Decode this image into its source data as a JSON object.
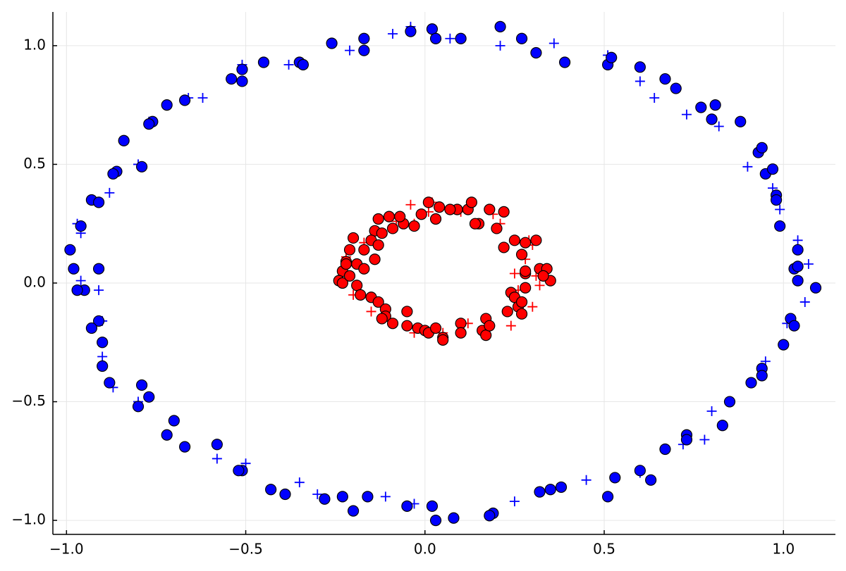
{
  "chart_data": {
    "type": "scatter",
    "xlim": [
      -1.038,
      1.145
    ],
    "ylim": [
      -1.059,
      1.142
    ],
    "xticks": [
      {
        "value": -1,
        "label": "−1.0"
      },
      {
        "value": -0.5,
        "label": "−0.5"
      },
      {
        "value": 0,
        "label": "0.0"
      },
      {
        "value": 0.5,
        "label": "0.5"
      },
      {
        "value": 1,
        "label": "1.0"
      }
    ],
    "yticks": [
      {
        "value": -1,
        "label": "−1.0"
      },
      {
        "value": -0.5,
        "label": "−0.5"
      },
      {
        "value": 0,
        "label": "0.0"
      },
      {
        "value": 0.5,
        "label": "0.5"
      },
      {
        "value": 1,
        "label": "1.0"
      }
    ],
    "grid": true,
    "series": [
      {
        "marker": "cross",
        "color": "#0000ff",
        "x": [
          -0.04,
          -0.21,
          -0.09,
          0.07,
          0.21,
          0.36,
          0.51,
          0.6,
          0.64,
          0.73,
          0.82,
          0.9,
          0.97,
          0.99,
          1.04,
          1.07,
          1.06,
          1.01,
          0.95,
          0.8,
          0.78,
          0.72,
          0.6,
          0.45,
          0.25,
          -0.03,
          -0.11,
          -0.3,
          -0.35,
          -0.5,
          -0.58,
          -0.8,
          -0.87,
          -0.9,
          -0.9,
          -0.91,
          -0.96,
          -0.96,
          -0.97,
          -0.88,
          -0.8,
          -0.77,
          -0.66,
          -0.62,
          -0.51,
          -0.38
        ],
        "values": [
          1.08,
          0.98,
          1.05,
          1.03,
          1.0,
          1.01,
          0.96,
          0.85,
          0.78,
          0.71,
          0.66,
          0.49,
          0.4,
          0.31,
          0.18,
          0.08,
          -0.08,
          -0.17,
          -0.33,
          -0.54,
          -0.66,
          -0.68,
          -0.8,
          -0.83,
          -0.92,
          -0.93,
          -0.9,
          -0.89,
          -0.84,
          -0.76,
          -0.74,
          -0.5,
          -0.44,
          -0.31,
          -0.16,
          -0.03,
          0.01,
          0.21,
          0.25,
          0.38,
          0.5,
          0.68,
          0.78,
          0.78,
          0.92,
          0.92
        ]
      },
      {
        "marker": "circle",
        "color": "#0000ff",
        "x": [
          -0.26,
          -0.17,
          -0.17,
          -0.04,
          0.02,
          0.03,
          0.1,
          0.21,
          0.27,
          0.31,
          0.39,
          0.51,
          0.52,
          0.6,
          0.67,
          0.7,
          0.77,
          0.81,
          0.8,
          0.88,
          0.93,
          0.94,
          0.95,
          0.97,
          0.98,
          0.98,
          0.99,
          1.04,
          1.03,
          1.04,
          1.04,
          1.09,
          1.02,
          1.03,
          1.0,
          0.91,
          0.94,
          0.94,
          0.85,
          0.83,
          0.73,
          0.73,
          0.67,
          0.63,
          0.6,
          0.53,
          0.51,
          0.38,
          0.35,
          0.32,
          0.19,
          0.18,
          0.08,
          0.03,
          0.02,
          -0.05,
          -0.16,
          -0.2,
          -0.23,
          -0.28,
          -0.39,
          -0.43,
          -0.51,
          -0.52,
          -0.58,
          -0.67,
          -0.7,
          -0.72,
          -0.77,
          -0.79,
          -0.8,
          -0.88,
          -0.9,
          -0.9,
          -0.91,
          -0.93,
          -0.91,
          -0.95,
          -0.97,
          -0.98,
          -0.99,
          -0.96,
          -0.93,
          -0.91,
          -0.86,
          -0.87,
          -0.84,
          -0.79,
          -0.76,
          -0.77,
          -0.72,
          -0.67,
          -0.54,
          -0.51,
          -0.51,
          -0.45,
          -0.35,
          -0.34
        ],
        "values": [
          1.01,
          1.03,
          0.98,
          1.06,
          1.07,
          1.03,
          1.03,
          1.08,
          1.03,
          0.97,
          0.93,
          0.92,
          0.95,
          0.91,
          0.86,
          0.82,
          0.74,
          0.75,
          0.69,
          0.68,
          0.55,
          0.57,
          0.46,
          0.48,
          0.37,
          0.35,
          0.24,
          0.14,
          0.06,
          0.07,
          0.01,
          -0.02,
          -0.15,
          -0.18,
          -0.26,
          -0.42,
          -0.36,
          -0.39,
          -0.5,
          -0.6,
          -0.64,
          -0.66,
          -0.7,
          -0.83,
          -0.79,
          -0.82,
          -0.9,
          -0.86,
          -0.87,
          -0.88,
          -0.97,
          -0.98,
          -0.99,
          -1.0,
          -0.94,
          -0.94,
          -0.9,
          -0.96,
          -0.9,
          -0.91,
          -0.89,
          -0.87,
          -0.79,
          -0.79,
          -0.68,
          -0.69,
          -0.58,
          -0.64,
          -0.48,
          -0.43,
          -0.52,
          -0.42,
          -0.25,
          -0.35,
          -0.16,
          -0.19,
          0.06,
          -0.03,
          -0.03,
          0.06,
          0.14,
          0.24,
          0.35,
          0.34,
          0.47,
          0.46,
          0.6,
          0.49,
          0.68,
          0.67,
          0.75,
          0.77,
          0.86,
          0.85,
          0.9,
          0.93,
          0.93,
          0.92
        ]
      },
      {
        "marker": "cross",
        "color": "#ff0000",
        "x": [
          -0.04,
          0.02,
          0.1,
          0.19,
          0.21,
          0.29,
          0.3,
          0.28,
          0.25,
          0.31,
          0.32,
          0.3,
          0.26,
          0.24,
          0.05,
          -0.03,
          -0.11,
          -0.15,
          -0.2,
          -0.23,
          -0.22,
          -0.17,
          -0.08,
          0.01,
          -0.03,
          0.12
        ],
        "values": [
          0.33,
          0.34,
          0.3,
          0.29,
          0.25,
          0.18,
          0.16,
          0.1,
          0.04,
          0.03,
          -0.01,
          -0.1,
          -0.03,
          -0.18,
          -0.21,
          -0.21,
          -0.12,
          -0.12,
          -0.05,
          0.02,
          0.11,
          0.17,
          0.26,
          0.3,
          0.25,
          -0.17
        ]
      },
      {
        "marker": "circle",
        "color": "#ff0000",
        "x": [
          -0.2,
          -0.21,
          -0.22,
          -0.23,
          -0.24,
          -0.23,
          -0.21,
          -0.19,
          -0.19,
          -0.18,
          -0.15,
          -0.13,
          -0.11,
          -0.11,
          -0.12,
          -0.09,
          -0.05,
          -0.05,
          -0.02,
          0.0,
          0.01,
          0.03,
          0.05,
          0.05,
          0.1,
          0.1,
          0.16,
          0.17,
          0.17,
          0.18,
          0.23,
          0.24,
          0.25,
          0.26,
          0.27,
          0.27,
          0.28,
          0.28,
          0.28,
          0.27,
          0.28,
          0.31,
          0.32,
          0.34,
          0.35,
          0.33,
          0.25,
          0.22,
          0.2,
          0.22,
          0.18,
          0.15,
          0.14,
          0.12,
          0.09,
          0.07,
          0.04,
          0.01,
          -0.01,
          0.03,
          -0.03,
          -0.06,
          -0.07,
          -0.1,
          -0.13,
          -0.14,
          -0.15,
          -0.13,
          -0.12,
          -0.09,
          -0.17,
          -0.14,
          -0.17,
          -0.22,
          0.13
        ],
        "values": [
          0.19,
          0.14,
          0.09,
          0.05,
          0.01,
          0.0,
          0.03,
          0.08,
          -0.01,
          -0.05,
          -0.06,
          -0.08,
          -0.11,
          -0.14,
          -0.15,
          -0.17,
          -0.12,
          -0.18,
          -0.19,
          -0.2,
          -0.21,
          -0.19,
          -0.23,
          -0.24,
          -0.17,
          -0.21,
          -0.2,
          -0.22,
          -0.15,
          -0.18,
          -0.12,
          -0.04,
          -0.06,
          -0.1,
          -0.13,
          -0.08,
          -0.02,
          0.04,
          0.05,
          0.12,
          0.17,
          0.18,
          0.06,
          0.06,
          0.01,
          0.03,
          0.18,
          0.15,
          0.23,
          0.3,
          0.31,
          0.25,
          0.25,
          0.31,
          0.31,
          0.31,
          0.32,
          0.34,
          0.29,
          0.27,
          0.24,
          0.25,
          0.28,
          0.28,
          0.27,
          0.22,
          0.18,
          0.16,
          0.21,
          0.23,
          0.14,
          0.1,
          0.06,
          0.08,
          0.34
        ]
      }
    ]
  }
}
